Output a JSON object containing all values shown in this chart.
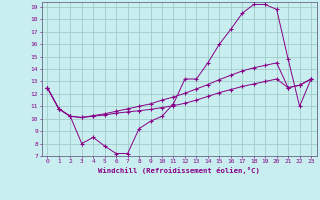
{
  "xlabel": "Windchill (Refroidissement éolien,°C)",
  "background_color": "#c8eef0",
  "grid_color": "#a0ccc8",
  "line_color": "#880088",
  "spine_color": "#666688",
  "tick_color": "#880088",
  "xlim": [
    -0.5,
    23.5
  ],
  "ylim": [
    7,
    19.4
  ],
  "xticks": [
    0,
    1,
    2,
    3,
    4,
    5,
    6,
    7,
    8,
    9,
    10,
    11,
    12,
    13,
    14,
    15,
    16,
    17,
    18,
    19,
    20,
    21,
    22,
    23
  ],
  "yticks": [
    7,
    8,
    9,
    10,
    11,
    12,
    13,
    14,
    15,
    16,
    17,
    18,
    19
  ],
  "line1_x": [
    0,
    1,
    2,
    3,
    4,
    5,
    6,
    7,
    8,
    9,
    10,
    11,
    12,
    13,
    14,
    15,
    16,
    17,
    18,
    19,
    20,
    21,
    22,
    23
  ],
  "line1_y": [
    12.5,
    10.8,
    10.2,
    8.0,
    8.5,
    7.8,
    7.2,
    7.2,
    9.2,
    9.8,
    10.2,
    11.2,
    13.2,
    13.2,
    14.5,
    16.0,
    17.2,
    18.5,
    19.2,
    19.2,
    18.8,
    14.8,
    11.0,
    13.2
  ],
  "line2_x": [
    0,
    1,
    2,
    3,
    4,
    5,
    6,
    7,
    8,
    9,
    10,
    11,
    12,
    13,
    14,
    15,
    16,
    17,
    18,
    19,
    20,
    21,
    22,
    23
  ],
  "line2_y": [
    12.5,
    10.8,
    10.2,
    10.1,
    10.2,
    10.3,
    10.45,
    10.55,
    10.65,
    10.75,
    10.9,
    11.05,
    11.25,
    11.5,
    11.8,
    12.1,
    12.35,
    12.6,
    12.8,
    13.0,
    13.2,
    12.5,
    12.7,
    13.2
  ],
  "line3_x": [
    0,
    1,
    2,
    3,
    4,
    5,
    6,
    7,
    8,
    9,
    10,
    11,
    12,
    13,
    14,
    15,
    16,
    17,
    18,
    19,
    20,
    21,
    22,
    23
  ],
  "line3_y": [
    12.5,
    10.8,
    10.2,
    10.1,
    10.25,
    10.4,
    10.6,
    10.8,
    11.0,
    11.2,
    11.5,
    11.75,
    12.05,
    12.4,
    12.75,
    13.15,
    13.5,
    13.85,
    14.1,
    14.3,
    14.5,
    12.5,
    12.7,
    13.2
  ]
}
